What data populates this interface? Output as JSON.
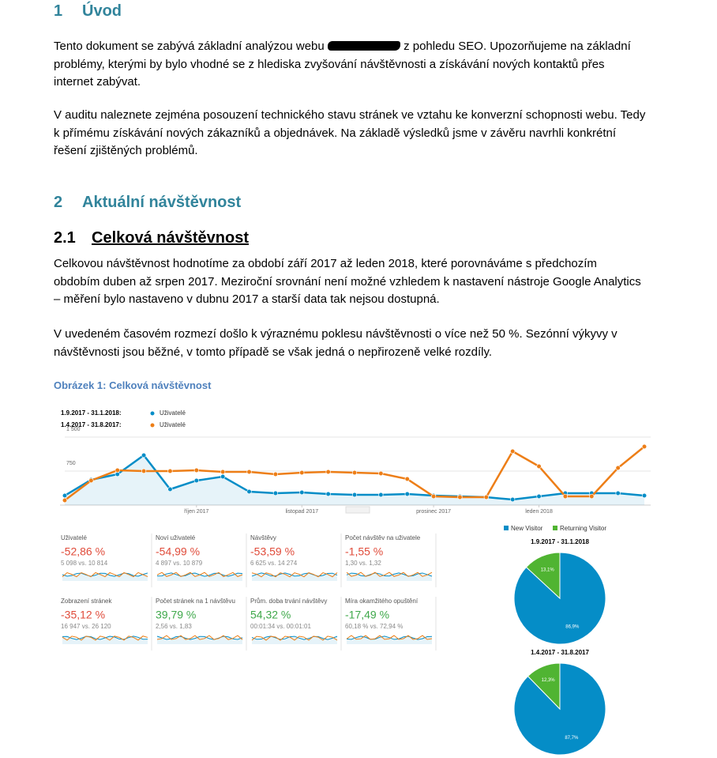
{
  "section1": {
    "number": "1",
    "title": "Úvod",
    "paragraph1": {
      "before": "Tento dokument se zabývá základní analýzou webu",
      "after": "z pohledu SEO. Upozorňujeme na základní problémy, kterými by bylo vhodné se z hlediska zvyšování návštěvnosti a získávání nových kontaktů přes internet zabývat."
    },
    "paragraph2": "V auditu naleznete zejména posouzení technického stavu stránek ve vztahu ke konverzní schopnosti webu. Tedy k přímému získávání nových zákazníků a objednávek. Na základě výsledků jsme v závěru navrhli konkrétní řešení zjištěných problémů."
  },
  "section2": {
    "number": "2",
    "title": "Aktuální návštěvnost",
    "subsection": {
      "number": "2.1",
      "title": "Celková návštěvnost",
      "paragraphs": [
        "Celkovou návštěvnost hodnotíme za období září 2017 až leden 2018, které porovnáváme s předchozím obdobím duben až srpen 2017. Meziroční srovnání není možné vzhledem k nastavení nástroje Google Analytics – měření bylo nastaveno v dubnu 2017 a starší data tak nejsou dostupná.",
        "V uvedeném časovém rozmezí došlo k výraznému poklesu návštěvnosti o více než 50 %. Sezónní výkyvy v návštěvnosti jsou běžné, v tomto případě se však jedná o nepřirozeně velké rozdíly."
      ]
    }
  },
  "figure": {
    "caption": "Obrázek 1: Celková návštěvnost",
    "line_chart": {
      "type": "line",
      "categories": [
        null,
        null,
        null,
        null,
        null,
        "říjen 2017",
        null,
        null,
        null,
        "listopad 2017",
        null,
        null,
        null,
        null,
        "prosinec 2017",
        null,
        null,
        null,
        "leden 2018",
        null,
        null,
        null,
        null
      ],
      "series": [
        {
          "period": "1.9.2017 - 31.1.2018:",
          "name": "Uživatelé",
          "color": "#058dc7",
          "area": true,
          "values": [
            209,
            558,
            680,
            1099,
            349,
            541,
            628,
            296,
            262,
            279,
            244,
            227,
            227,
            244,
            209,
            192,
            174,
            122,
            192,
            262,
            262,
            262,
            209
          ]
        },
        {
          "period": "1.4.2017 - 31.8.2017:",
          "name": "Uživatelé",
          "color": "#ed7e17",
          "area": false,
          "values": [
            105,
            541,
            767,
            750,
            750,
            767,
            732,
            732,
            680,
            715,
            732,
            715,
            698,
            575,
            192,
            174,
            174,
            1186,
            855,
            192,
            192,
            820,
            1291
          ]
        }
      ],
      "ylim": [
        0,
        1500
      ],
      "yticks": [
        {
          "value": 1500,
          "label": "1 500"
        },
        750
      ],
      "grid": true
    },
    "metrics": [
      {
        "name": "Uživatelé",
        "change": "-52,86 %",
        "comparison": "5 098 vs. 10 814",
        "color": "#e04b3a"
      },
      {
        "name": "Noví uživatelé",
        "change": "-54,99 %",
        "comparison": "4 897 vs. 10 879",
        "color": "#e04b3a"
      },
      {
        "name": "Návštěvy",
        "change": "-53,59 %",
        "comparison": "6 625 vs. 14 274",
        "color": "#e04b3a"
      },
      {
        "name": "Počet návštěv na uživatele",
        "change": "-1,55 %",
        "comparison": "1,30 vs. 1,32",
        "color": "#e04b3a"
      },
      {
        "name": "Zobrazení stránek",
        "change": "-35,12 %",
        "comparison": "16 947 vs. 26 120",
        "color": "#e04b3a"
      },
      {
        "name": "Počet stránek na 1 návštěvu",
        "change": "39,79 %",
        "comparison": "2,56 vs. 1,83",
        "color": "#3ea84a"
      },
      {
        "name": "Prům. doba trvání návštěvy",
        "change": "54,32 %",
        "comparison": "00:01:34 vs. 00:01:01",
        "color": "#3ea84a"
      },
      {
        "name": "Míra okamžitého opuštění",
        "change": "-17,49 %",
        "comparison": "60,18 % vs. 72,94 %",
        "color": "#3ea84a"
      }
    ],
    "pies": {
      "type": "pie",
      "legend": [
        "New Visitor",
        "Returning Visitor"
      ],
      "colors": [
        "#058dc7",
        "#50b432"
      ],
      "charts": [
        {
          "title": "1.9.2017 - 31.1.2018",
          "values": [
            86.9,
            13.1
          ],
          "value_labels": [
            "86,9%",
            "13,1%"
          ]
        },
        {
          "title": "1.4.2017 - 31.8.2017",
          "values": [
            87.7,
            12.3
          ],
          "value_labels": [
            "87,7%",
            "12,3%"
          ]
        }
      ]
    }
  }
}
